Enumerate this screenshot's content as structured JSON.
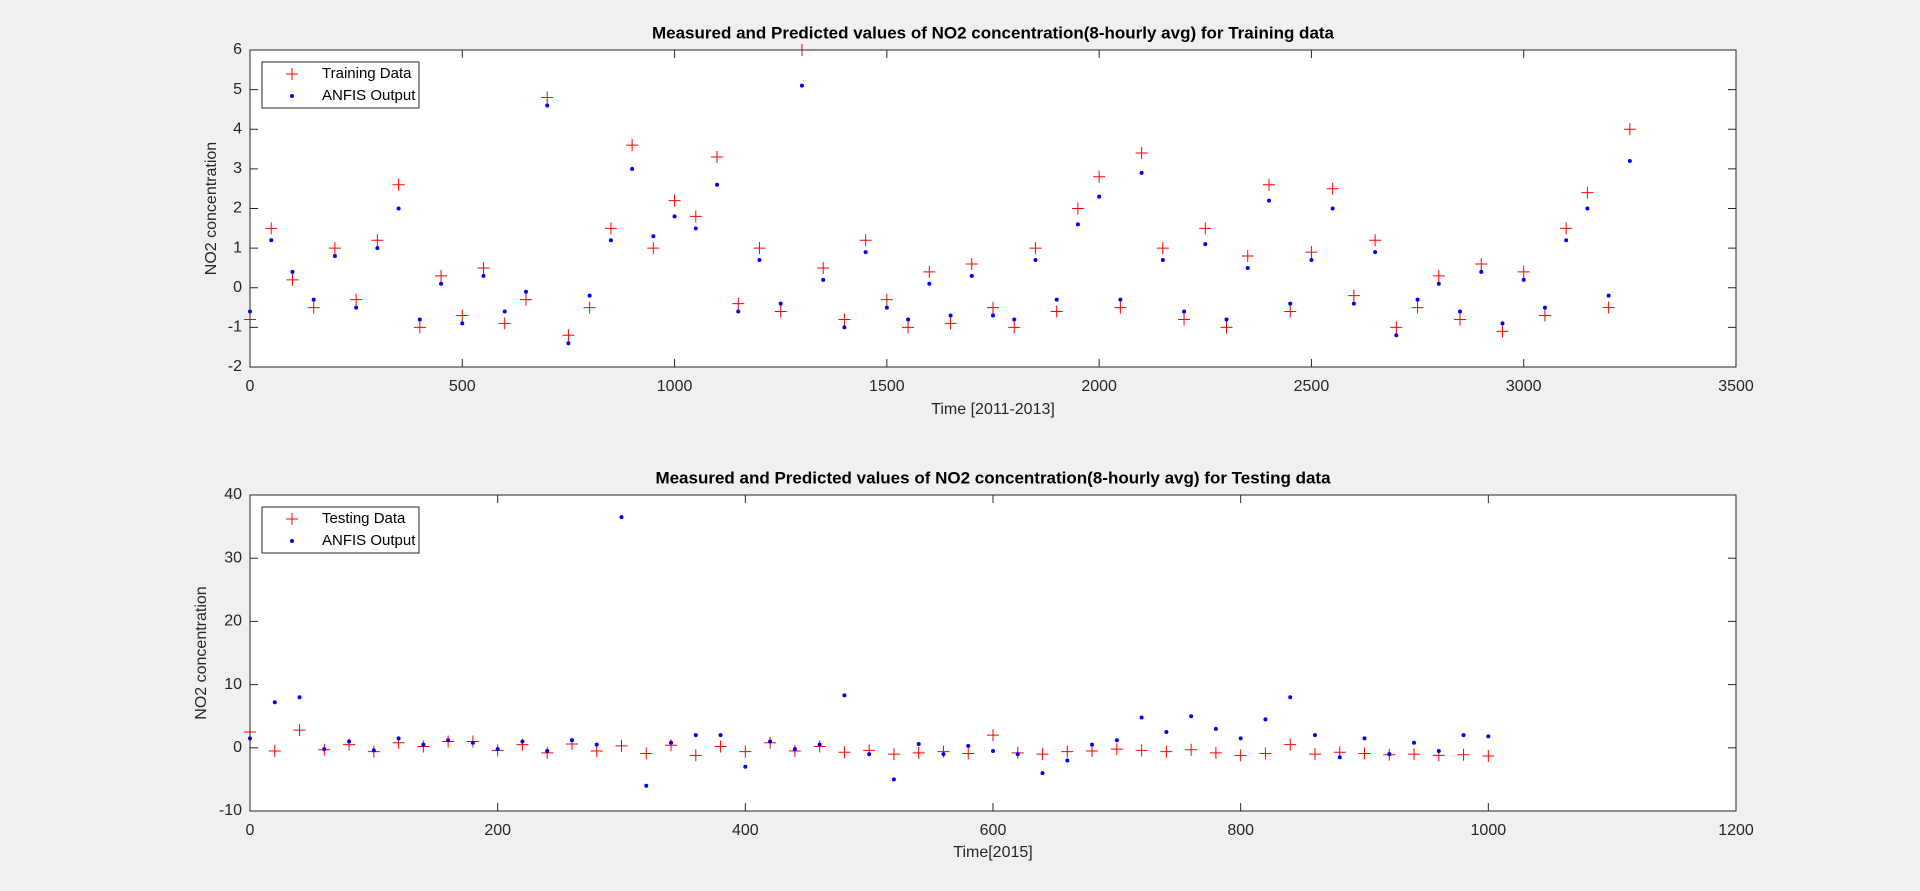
{
  "chart_data": [
    {
      "type": "scatter",
      "title": "Measured and Predicted values of NO2 concentration(8-hourly avg) for Training data",
      "x_label": "Time [2011-2013]",
      "y_label": "NO2 concentration",
      "x": [
        0,
        50,
        100,
        150,
        200,
        250,
        300,
        350,
        400,
        450,
        500,
        550,
        600,
        650,
        700,
        750,
        800,
        850,
        900,
        950,
        1000,
        1050,
        1100,
        1150,
        1200,
        1250,
        1300,
        1350,
        1400,
        1450,
        1500,
        1550,
        1600,
        1650,
        1700,
        1750,
        1800,
        1850,
        1900,
        1950,
        2000,
        2050,
        2100,
        2150,
        2200,
        2250,
        2300,
        2350,
        2400,
        2450,
        2500,
        2550,
        2600,
        2650,
        2700,
        2750,
        2800,
        2850,
        2900,
        2950,
        3000,
        3050,
        3100,
        3150,
        3200,
        3250
      ],
      "series": [
        {
          "name": "Training Data",
          "color": "#ff0000",
          "marker": "+",
          "values": [
            -0.8,
            1.5,
            0.2,
            -0.5,
            1.0,
            -0.3,
            1.2,
            2.6,
            -1.0,
            0.3,
            -0.7,
            0.5,
            -0.9,
            -0.3,
            4.8,
            -1.2,
            -0.5,
            1.5,
            3.6,
            1.0,
            2.2,
            1.8,
            3.3,
            -0.4,
            1.0,
            -0.6,
            6.0,
            0.5,
            -0.8,
            1.2,
            -0.3,
            -1.0,
            0.4,
            -0.9,
            0.6,
            -0.5,
            -1.0,
            1.0,
            -0.6,
            2.0,
            2.8,
            -0.5,
            3.4,
            1.0,
            -0.8,
            1.5,
            -1.0,
            0.8,
            2.6,
            -0.6,
            0.9,
            2.5,
            -0.2,
            1.2,
            -1.0,
            -0.5,
            0.3,
            -0.8,
            0.6,
            -1.1,
            0.4,
            -0.7,
            1.5,
            2.4,
            -0.5,
            4.0
          ]
        },
        {
          "name": "ANFIS Output",
          "color": "#0000ff",
          "marker": ".",
          "values": [
            -0.6,
            1.2,
            0.4,
            -0.3,
            0.8,
            -0.5,
            1.0,
            2.0,
            -0.8,
            0.1,
            -0.9,
            0.3,
            -0.6,
            -0.1,
            4.6,
            -1.4,
            -0.2,
            1.2,
            3.0,
            1.3,
            1.8,
            1.5,
            2.6,
            -0.6,
            0.7,
            -0.4,
            5.1,
            0.2,
            -1.0,
            0.9,
            -0.5,
            -0.8,
            0.1,
            -0.7,
            0.3,
            -0.7,
            -0.8,
            0.7,
            -0.3,
            1.6,
            2.3,
            -0.3,
            2.9,
            0.7,
            -0.6,
            1.1,
            -0.8,
            0.5,
            2.2,
            -0.4,
            0.7,
            2.0,
            -0.4,
            0.9,
            -1.2,
            -0.3,
            0.1,
            -0.6,
            0.4,
            -0.9,
            0.2,
            -0.5,
            1.2,
            2.0,
            -0.2,
            3.2
          ]
        }
      ],
      "xlim": [
        0,
        3500
      ],
      "xticks": [
        0,
        500,
        1000,
        1500,
        2000,
        2500,
        3000,
        3500
      ],
      "ylim": [
        -2,
        6
      ],
      "yticks": [
        -2,
        -1,
        0,
        1,
        2,
        3,
        4,
        5,
        6
      ],
      "legend": "upper left"
    },
    {
      "type": "scatter",
      "title": "Measured and Predicted values of NO2 concentration(8-hourly avg) for Testing data",
      "x_label": "Time[2015]",
      "y_label": "NO2 concentration",
      "x": [
        0,
        20,
        40,
        60,
        80,
        100,
        120,
        140,
        160,
        180,
        200,
        220,
        240,
        260,
        280,
        300,
        320,
        340,
        360,
        380,
        400,
        420,
        440,
        460,
        480,
        500,
        520,
        540,
        560,
        580,
        600,
        620,
        640,
        660,
        680,
        700,
        720,
        740,
        760,
        780,
        800,
        820,
        840,
        860,
        880,
        900,
        920,
        940,
        960,
        980,
        1000
      ],
      "series": [
        {
          "name": "Testing Data",
          "color": "#ff0000",
          "marker": "+",
          "values": [
            2.5,
            -0.5,
            2.8,
            -0.3,
            0.5,
            -0.6,
            0.8,
            0.2,
            1.0,
            1.0,
            -0.4,
            0.5,
            -0.8,
            0.6,
            -0.5,
            0.3,
            -0.9,
            0.4,
            -1.2,
            0.2,
            -0.6,
            0.8,
            -0.5,
            0.2,
            -0.7,
            -0.4,
            -1.0,
            -0.8,
            -0.6,
            -0.9,
            2.0,
            -0.8,
            -1.0,
            -0.6,
            -0.5,
            -0.2,
            -0.4,
            -0.6,
            -0.3,
            -0.8,
            -1.2,
            -0.9,
            0.5,
            -1.0,
            -0.7,
            -0.9,
            -1.1,
            -1.0,
            -1.2,
            -1.1,
            -1.3
          ]
        },
        {
          "name": "ANFIS Output",
          "color": "#0000ff",
          "marker": ".",
          "values": [
            1.5,
            7.2,
            8.0,
            -0.2,
            1.0,
            -0.4,
            1.5,
            0.5,
            1.2,
            0.8,
            -0.2,
            1.0,
            -0.5,
            1.2,
            0.5,
            36.5,
            -6.0,
            0.8,
            2.0,
            2.0,
            -3.0,
            1.0,
            -0.2,
            0.5,
            8.3,
            -1.0,
            -5.0,
            0.6,
            -1.0,
            0.3,
            -0.5,
            -1.0,
            -4.0,
            -2.0,
            0.5,
            1.2,
            4.8,
            2.5,
            5.0,
            3.0,
            1.5,
            4.5,
            8.0,
            2.0,
            -1.5,
            1.5,
            -1.0,
            0.8,
            -0.5,
            2.0,
            1.8
          ]
        }
      ],
      "xlim": [
        0,
        1200
      ],
      "xticks": [
        0,
        200,
        400,
        600,
        800,
        1000,
        1200
      ],
      "ylim": [
        -10,
        40
      ],
      "yticks": [
        -10,
        0,
        10,
        20,
        30,
        40
      ],
      "legend": "upper left"
    }
  ]
}
